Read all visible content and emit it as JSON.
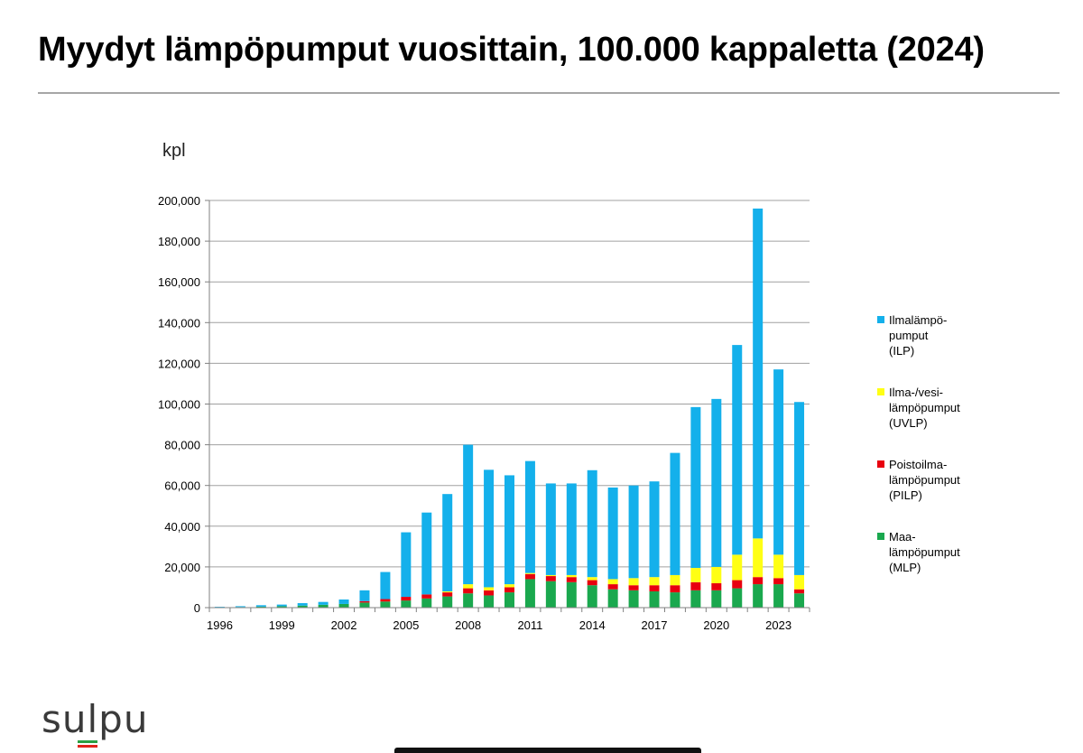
{
  "page": {
    "title": "Myydyt lämpöpumput vuosittain, 100.000 kappaletta (2024)",
    "logo_text": "sulpu",
    "logo_colors": [
      "#2aa043",
      "#e2241b"
    ]
  },
  "chart_data": {
    "type": "bar",
    "stacked": true,
    "title": "",
    "xlabel": "",
    "ylabel": "kpl",
    "ylim": [
      0,
      200000
    ],
    "yticks": [
      0,
      20000,
      40000,
      60000,
      80000,
      100000,
      120000,
      140000,
      160000,
      180000,
      200000
    ],
    "ytick_labels": [
      "0",
      "20,000",
      "40,000",
      "60,000",
      "80,000",
      "100,000",
      "120,000",
      "140,000",
      "160,000",
      "180,000",
      "200,000"
    ],
    "grid": true,
    "legend_position": "right",
    "categories": [
      "1996",
      "1997",
      "1998",
      "1999",
      "2000",
      "2001",
      "2002",
      "2003",
      "2004",
      "2005",
      "2006",
      "2007",
      "2008",
      "2009",
      "2010",
      "2011",
      "2012",
      "2013",
      "2014",
      "2015",
      "2016",
      "2017",
      "2018",
      "2019",
      "2020",
      "2021",
      "2022",
      "2023",
      "2024"
    ],
    "xtick_labels": [
      "1996",
      "1999",
      "2002",
      "2005",
      "2008",
      "2011",
      "2014",
      "2017",
      "2020",
      "2023"
    ],
    "series": [
      {
        "name": "Maa-\nlämpöpumput\n(MLP)",
        "color": "#1aa84e",
        "values": [
          200,
          300,
          500,
          700,
          1000,
          1400,
          1800,
          2500,
          3000,
          3500,
          4500,
          5500,
          7000,
          6000,
          7500,
          14000,
          13000,
          12500,
          11000,
          9000,
          8500,
          8000,
          7500,
          8500,
          8500,
          9500,
          11500,
          11500,
          7000
        ]
      },
      {
        "name": "Poistoilma-\nlämpöpumput\n(PILP)",
        "color": "#e8000f",
        "values": [
          0,
          0,
          0,
          0,
          0,
          0,
          0,
          700,
          1200,
          1800,
          2000,
          2000,
          2500,
          2500,
          2500,
          2500,
          2500,
          2500,
          2500,
          2500,
          2500,
          3000,
          3500,
          4000,
          3500,
          4000,
          3500,
          3000,
          2000
        ]
      },
      {
        "name": "Ilma-/vesi-\nlämpöpumput\n(UVLP)",
        "color": "#ffff14",
        "values": [
          0,
          0,
          0,
          0,
          0,
          0,
          0,
          0,
          0,
          0,
          0,
          500,
          2000,
          1500,
          1500,
          500,
          500,
          1000,
          1500,
          2500,
          3500,
          4000,
          5000,
          7000,
          8000,
          12500,
          19000,
          11500,
          7000
        ]
      },
      {
        "name": "Ilmalämpö-\npumput\n(ILP)",
        "color": "#14b0eb",
        "values": [
          200,
          400,
          700,
          800,
          1200,
          1400,
          2200,
          5300,
          13300,
          31700,
          40200,
          47800,
          68500,
          57700,
          53500,
          55000,
          45000,
          45000,
          52500,
          45000,
          45500,
          47000,
          60000,
          79000,
          82500,
          103000,
          162000,
          91000,
          85000
        ]
      }
    ]
  }
}
